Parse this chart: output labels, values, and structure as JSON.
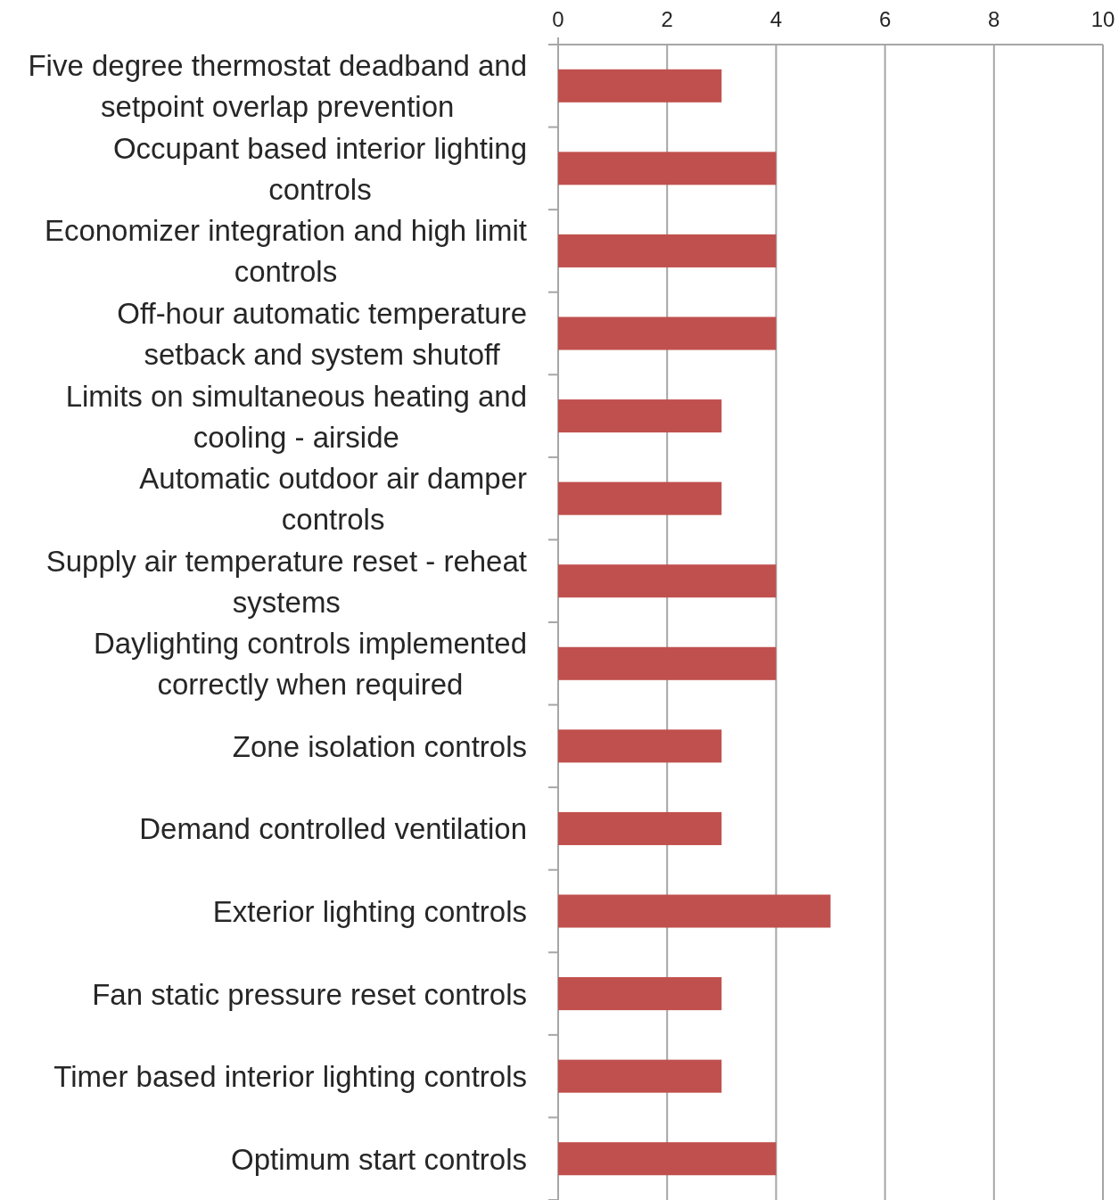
{
  "chart_data": {
    "type": "bar",
    "orientation": "horizontal",
    "categories": [
      "Five degree thermostat deadband and setpoint overlap prevention",
      "Occupant based interior lighting controls",
      "Economizer integration and high limit controls",
      "Off-hour automatic temperature setback and system shutoff",
      "Limits on simultaneous heating and cooling - airside",
      "Automatic outdoor air damper controls",
      "Supply air temperature reset - reheat systems",
      "Daylighting controls implemented correctly when required",
      "Zone isolation controls",
      "Demand controlled ventilation",
      "Exterior lighting controls",
      "Fan static pressure reset controls",
      "Timer based interior lighting controls",
      "Optimum start controls"
    ],
    "values": [
      3,
      4,
      4,
      4,
      3,
      3,
      4,
      4,
      3,
      3,
      5,
      3,
      3,
      4
    ],
    "color": "#c0504d",
    "xlim": [
      0,
      10
    ],
    "xticks": [
      0,
      2,
      4,
      6,
      8,
      10
    ],
    "grid": "x"
  }
}
